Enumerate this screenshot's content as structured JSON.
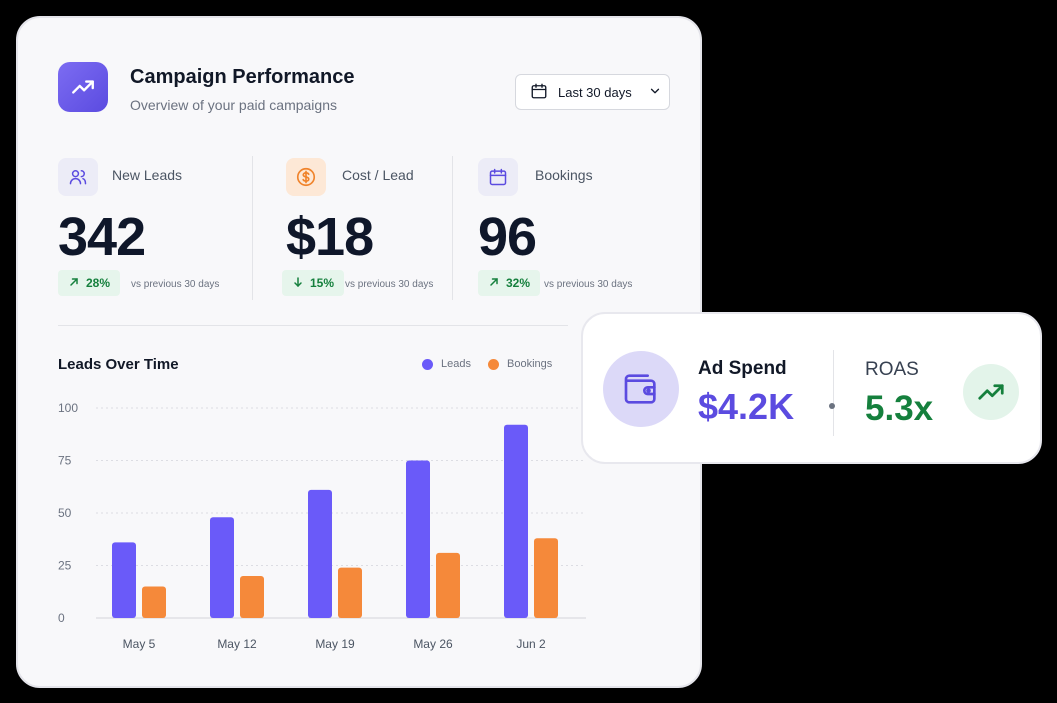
{
  "header": {
    "title": "Campaign Performance",
    "subtitle": "Overview of your paid campaigns",
    "date_range": "Last 30 days",
    "icon": "trend-up-icon"
  },
  "metrics": [
    {
      "label": "New Leads",
      "value": "342",
      "change": "28%",
      "direction": "up",
      "compare": "vs previous 30 days",
      "icon": "users-icon",
      "icon_bg": "#ececf7",
      "icon_color": "#5b4be0"
    },
    {
      "label": "Cost / Lead",
      "value": "$18",
      "change": "15%",
      "direction": "down",
      "compare": "vs previous 30 days",
      "icon": "dollar-icon",
      "icon_bg": "#fde8d6",
      "icon_color": "#f0832b"
    },
    {
      "label": "Bookings",
      "value": "96",
      "change": "32%",
      "direction": "up",
      "compare": "vs previous 30 days",
      "icon": "calendar-icon",
      "icon_bg": "#ececf7",
      "icon_color": "#5b4be0"
    }
  ],
  "chart_data": {
    "type": "bar",
    "title": "Leads Over Time",
    "categories": [
      "May 5",
      "May 12",
      "May 19",
      "May 26",
      "Jun 2"
    ],
    "series": [
      {
        "name": "Leads",
        "color": "#6a5af9",
        "values": [
          36,
          48,
          61,
          75,
          92
        ]
      },
      {
        "name": "Bookings",
        "color": "#f5893a",
        "values": [
          15,
          20,
          24,
          31,
          38
        ]
      }
    ],
    "ylim": [
      0,
      100
    ],
    "yticks": [
      "0",
      "25",
      "50",
      "75",
      "100"
    ],
    "grid": true,
    "legend": "top-right"
  },
  "spend": {
    "label": "Ad Spend",
    "value": "$4.2K",
    "roas_label": "ROAS",
    "roas_value": "5.3x",
    "icons": [
      "wallet-icon",
      "trend-up-icon"
    ],
    "accent": "#5b4be0",
    "positive": "#15803d"
  }
}
